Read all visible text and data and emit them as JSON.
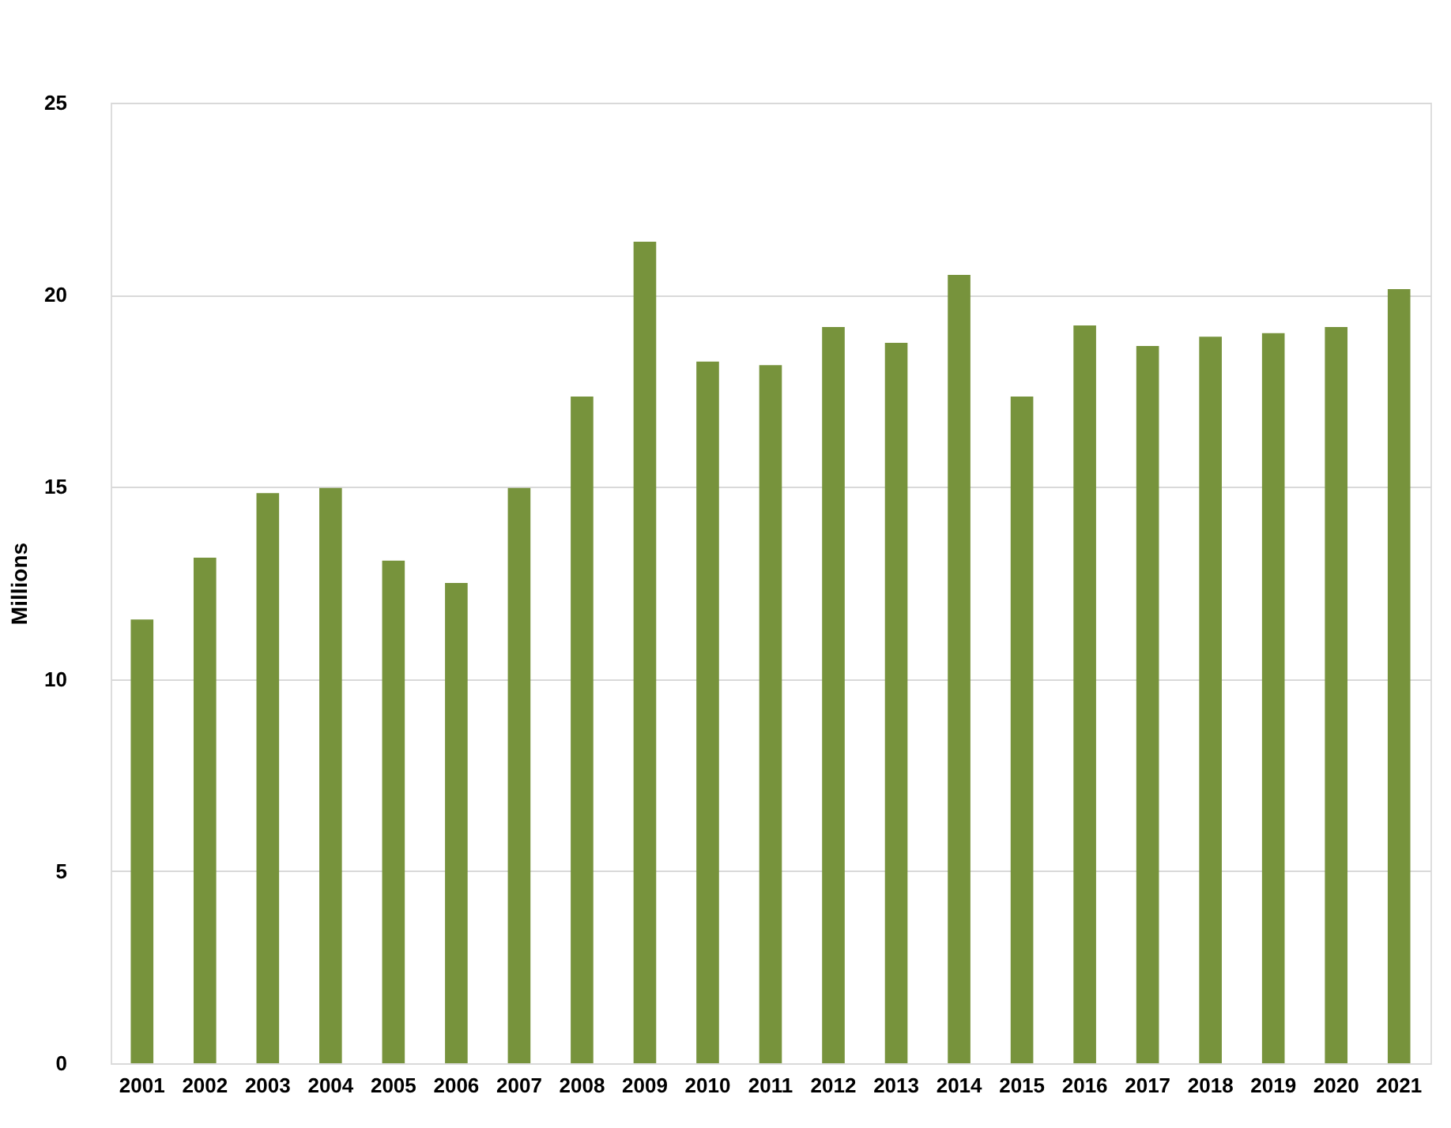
{
  "chart_data": {
    "type": "bar",
    "ylabel": "Millions",
    "categories": [
      "2001",
      "2002",
      "2003",
      "2004",
      "2005",
      "2006",
      "2007",
      "2008",
      "2009",
      "2010",
      "2011",
      "2012",
      "2013",
      "2014",
      "2015",
      "2016",
      "2017",
      "2018",
      "2019",
      "2020",
      "2021"
    ],
    "values": [
      11.55,
      13.16,
      14.84,
      14.97,
      13.08,
      12.5,
      14.97,
      17.35,
      21.38,
      18.26,
      18.17,
      19.16,
      18.75,
      20.52,
      17.35,
      19.2,
      18.67,
      18.91,
      19.0,
      19.16,
      20.15
    ],
    "color": "#77933c",
    "ylim": [
      0,
      25
    ],
    "yticks": [
      0,
      5,
      10,
      15,
      20,
      25
    ],
    "grid": "y"
  }
}
